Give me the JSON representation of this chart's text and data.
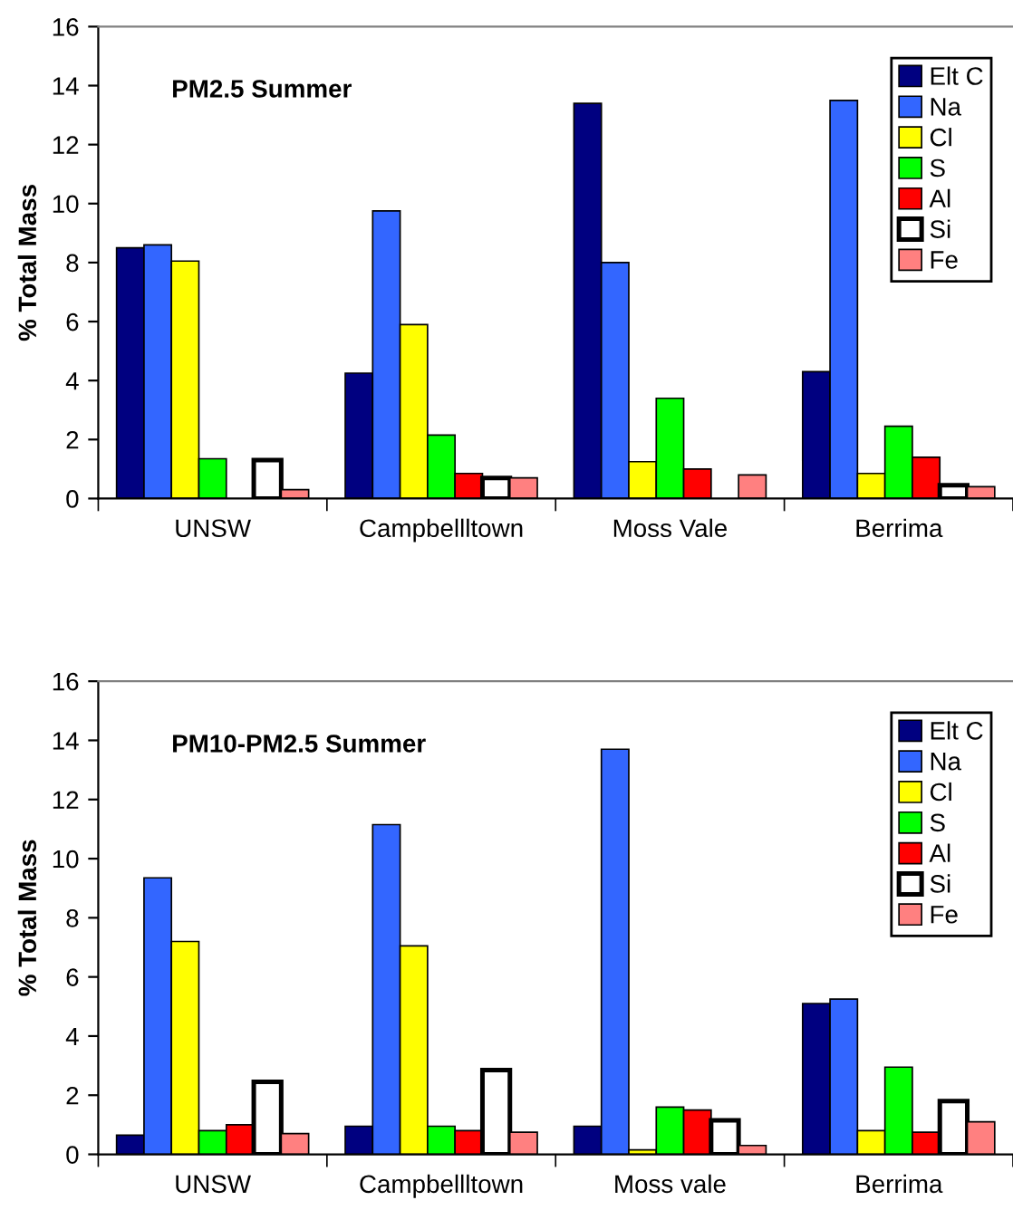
{
  "chart_data": [
    {
      "type": "bar",
      "title": "PM2.5 Summer",
      "ylabel": "% Total Mass",
      "categories": [
        "UNSW",
        "Campbellltown",
        "Moss Vale",
        "Berrima"
      ],
      "series": [
        {
          "name": "Elt C",
          "color": "#000080",
          "values": [
            8.5,
            4.25,
            13.4,
            4.3
          ]
        },
        {
          "name": "Na",
          "color": "#3366ff",
          "values": [
            8.6,
            9.75,
            8.0,
            13.5
          ]
        },
        {
          "name": "Cl",
          "color": "#ffff00",
          "values": [
            8.05,
            5.9,
            1.25,
            0.85
          ]
        },
        {
          "name": "S",
          "color": "#00ff00",
          "values": [
            1.35,
            2.15,
            3.4,
            2.45
          ]
        },
        {
          "name": "Al",
          "color": "#ff0000",
          "values": [
            null,
            0.85,
            1.0,
            1.4
          ]
        },
        {
          "name": "Si",
          "color": "#ffffff",
          "values": [
            1.3,
            0.7,
            null,
            0.45
          ]
        },
        {
          "name": "Fe",
          "color": "#ff8080",
          "values": [
            0.3,
            0.7,
            0.8,
            0.4
          ]
        }
      ],
      "ylim": [
        0,
        16
      ],
      "yticks": [
        0,
        2,
        4,
        6,
        8,
        10,
        12,
        14,
        16
      ],
      "legend": "top right",
      "grid": false
    },
    {
      "type": "bar",
      "title": "PM10-PM2.5 Summer",
      "ylabel": "% Total Mass",
      "categories": [
        "UNSW",
        "Campbellltown",
        "Moss vale",
        "Berrima"
      ],
      "series": [
        {
          "name": "Elt C",
          "color": "#000080",
          "values": [
            0.65,
            0.95,
            0.95,
            5.1
          ]
        },
        {
          "name": "Na",
          "color": "#3366ff",
          "values": [
            9.35,
            11.15,
            13.7,
            5.25
          ]
        },
        {
          "name": "Cl",
          "color": "#ffff00",
          "values": [
            7.2,
            7.05,
            0.15,
            0.8
          ]
        },
        {
          "name": "S",
          "color": "#00ff00",
          "values": [
            0.8,
            0.95,
            1.6,
            2.95
          ]
        },
        {
          "name": "Al",
          "color": "#ff0000",
          "values": [
            1.0,
            0.8,
            1.5,
            0.75
          ]
        },
        {
          "name": "Si",
          "color": "#ffffff",
          "values": [
            2.45,
            2.85,
            1.15,
            1.8
          ]
        },
        {
          "name": "Fe",
          "color": "#ff8080",
          "values": [
            0.7,
            0.75,
            0.3,
            1.1
          ]
        }
      ],
      "ylim": [
        0,
        16
      ],
      "yticks": [
        0,
        2,
        4,
        6,
        8,
        10,
        12,
        14,
        16
      ],
      "legend": "top right",
      "grid": false
    }
  ]
}
